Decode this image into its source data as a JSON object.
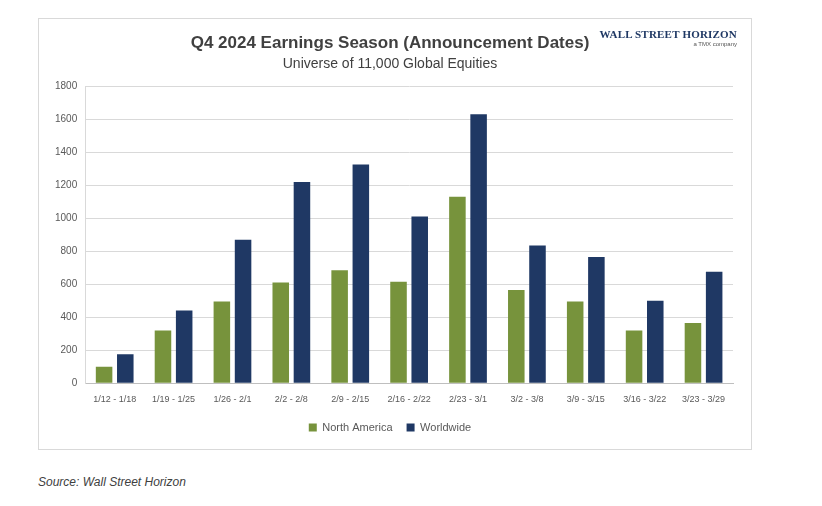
{
  "chart_data": {
    "type": "bar",
    "title": "Q4 2024 Earnings Season (Announcement Dates)",
    "subtitle": "Universe of 11,000 Global Equities",
    "categories": [
      "1/12 - 1/18",
      "1/19 - 1/25",
      "1/26 - 2/1",
      "2/2 - 2/8",
      "2/9 - 2/15",
      "2/16 - 2/22",
      "2/23 - 3/1",
      "3/2 - 3/8",
      "3/9 - 3/15",
      "3/16 - 3/22",
      "3/23 - 3/29"
    ],
    "series": [
      {
        "name": "North America",
        "color": "#77933c",
        "values": [
          100,
          320,
          495,
          610,
          685,
          615,
          1130,
          565,
          495,
          320,
          365
        ]
      },
      {
        "name": "Worldwide",
        "color": "#1f3864",
        "values": [
          175,
          440,
          870,
          1220,
          1325,
          1010,
          1630,
          835,
          765,
          500,
          675
        ]
      }
    ],
    "ylim": [
      0,
      1800
    ],
    "yticks": [
      0,
      200,
      400,
      600,
      800,
      1000,
      1200,
      1400,
      1600,
      1800
    ],
    "grid": true,
    "legend": "bottom"
  },
  "logo": {
    "name": "WALL STREET HORIZON",
    "tagline": "a TMX company"
  },
  "source": "Source: Wall Street Horizon"
}
